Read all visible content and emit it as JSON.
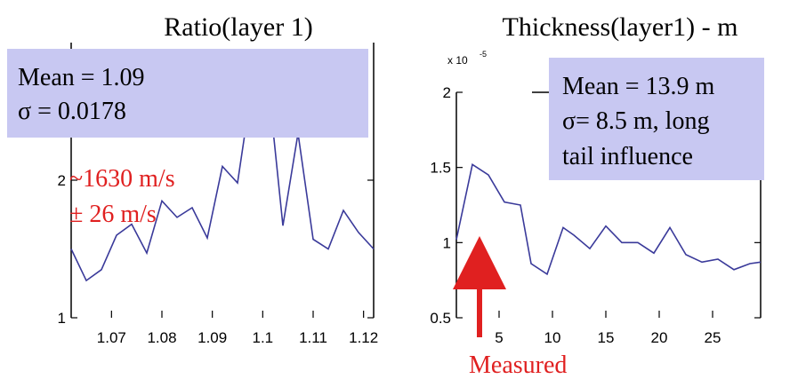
{
  "charts": [
    {
      "title": "Ratio(layer 1)",
      "stats_box": {
        "line1": "Mean = 1.09",
        "line2": "σ = 0.0178"
      },
      "annotation": {
        "line1": "~1630 m/s",
        "line2": "± 26 m/s"
      },
      "y_exponent": "",
      "arrow_label": ""
    },
    {
      "title": "Thickness(layer1) - m",
      "stats_box": {
        "line1": "Mean = 13.9 m",
        "line2": "σ= 8.5 m, long",
        "line3": "tail influence"
      },
      "y_exponent": "x 10",
      "y_exponent_power": "-5",
      "arrow_label": "Measured"
    }
  ],
  "colors": {
    "line": "#3a3a9a",
    "box": "#c8c8f2",
    "annotation": "#e02020"
  },
  "chart_data": [
    {
      "type": "line",
      "title": "Ratio(layer 1)",
      "xlim": [
        1.062,
        1.122
      ],
      "ylim": [
        1,
        3
      ],
      "x_ticks": [
        1.07,
        1.08,
        1.09,
        1.1,
        1.11,
        1.12
      ],
      "x_tick_labels": [
        "1.07",
        "1.08",
        "1.09",
        "1.1",
        "1.11",
        "1.12"
      ],
      "y_ticks": [
        1,
        2
      ],
      "y_tick_labels": [
        "1",
        "2"
      ],
      "series": [
        {
          "x": [
            1.062,
            1.065,
            1.068,
            1.071,
            1.074,
            1.077,
            1.08,
            1.083,
            1.086,
            1.089,
            1.092,
            1.095,
            1.098,
            1.101,
            1.104,
            1.107,
            1.11,
            1.113,
            1.116,
            1.119,
            1.122
          ],
          "y": [
            1.5,
            1.27,
            1.35,
            1.6,
            1.68,
            1.47,
            1.85,
            1.73,
            1.8,
            1.58,
            2.1,
            1.98,
            2.72,
            2.74,
            1.67,
            2.34,
            1.57,
            1.5,
            1.78,
            1.62,
            1.5
          ]
        }
      ]
    },
    {
      "type": "line",
      "title": "Thickness(layer1) - m",
      "xlim": [
        1,
        29.5
      ],
      "ylim": [
        0.5,
        2
      ],
      "x_ticks": [
        5,
        10,
        15,
        20,
        25
      ],
      "x_tick_labels": [
        "5",
        "10",
        "15",
        "20",
        "25"
      ],
      "y_ticks": [
        0.5,
        1,
        1.5,
        2
      ],
      "y_tick_labels": [
        "0.5",
        "1",
        "1.5",
        "2"
      ],
      "series": [
        {
          "x": [
            1,
            2.5,
            4,
            5.5,
            7,
            8,
            9.5,
            11,
            12,
            13.5,
            15,
            16.5,
            18,
            19.5,
            21,
            22.5,
            24,
            25.5,
            27,
            28.5,
            29.5
          ],
          "y": [
            1.02,
            1.52,
            1.45,
            1.27,
            1.25,
            0.86,
            0.79,
            1.1,
            1.05,
            0.96,
            1.11,
            1.0,
            1.0,
            0.93,
            1.1,
            0.92,
            0.87,
            0.89,
            0.82,
            0.86,
            0.87
          ]
        }
      ]
    }
  ]
}
